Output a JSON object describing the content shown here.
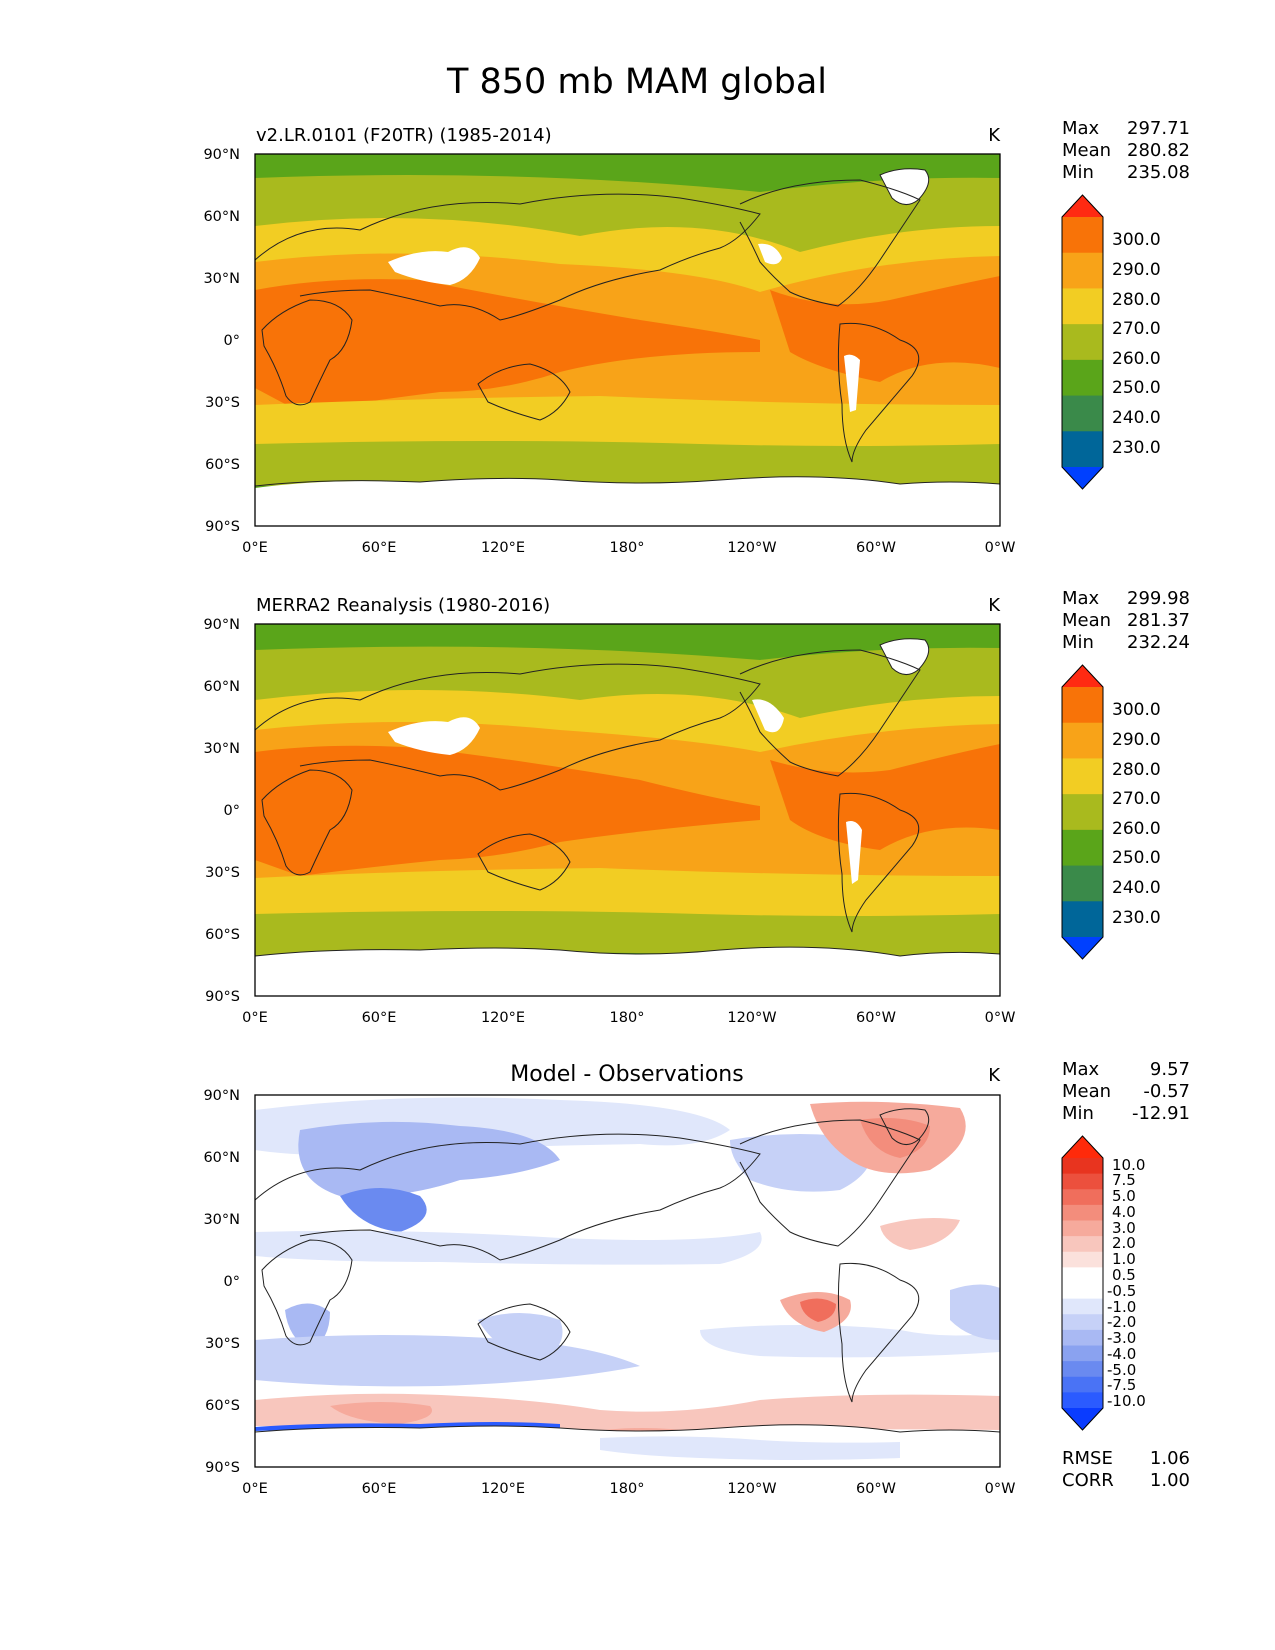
{
  "figure_title": "T 850 mb MAM global",
  "colors": {
    "abs_levels": [
      "#0040ff",
      "#006699",
      "#3a8a4a",
      "#5aa51a",
      "#a9ba1e",
      "#f2cd23",
      "#f8a318",
      "#f87308",
      "#ff2a12"
    ],
    "diff_levels": [
      "#0a3cff",
      "#2b5bff",
      "#4a73f5",
      "#6a8af0",
      "#8aa2f0",
      "#a9b9f3",
      "#c6d1f7",
      "#e0e7fb",
      "#ffffff",
      "#ffffff",
      "#fbe1dc",
      "#f8c6bd",
      "#f6aa9c",
      "#f38d7c",
      "#f06e5c",
      "#ec503d",
      "#e8341f",
      "#ff2a0a"
    ],
    "coast": "#222222",
    "missing": "#ffffff"
  },
  "chart_data": [
    {
      "type": "heatmap",
      "id": "model",
      "title": "v2.LR.0101 (F20TR) (1985-2014)",
      "units": "K",
      "stats": [
        {
          "label": "Max",
          "value": "297.71"
        },
        {
          "label": "Mean",
          "value": "280.82"
        },
        {
          "label": "Min",
          "value": "235.08"
        }
      ],
      "colorbar_labels": [
        "300.0",
        "290.0",
        "280.0",
        "270.0",
        "260.0",
        "250.0",
        "240.0",
        "230.0"
      ],
      "x_ticks": [
        "0°E",
        "60°E",
        "120°E",
        "180°",
        "120°W",
        "60°W",
        "0°W"
      ],
      "y_ticks": [
        "90°N",
        "60°N",
        "30°N",
        "0°",
        "30°S",
        "60°S",
        "90°S"
      ],
      "x_range": [
        0,
        360
      ],
      "y_range": [
        -90,
        90
      ],
      "levels": [
        230,
        240,
        250,
        260,
        270,
        280,
        290,
        300
      ],
      "extend": "both"
    },
    {
      "type": "heatmap",
      "id": "obs",
      "title": "MERRA2 Reanalysis (1980-2016)",
      "units": "K",
      "stats": [
        {
          "label": "Max",
          "value": "299.98"
        },
        {
          "label": "Mean",
          "value": "281.37"
        },
        {
          "label": "Min",
          "value": "232.24"
        }
      ],
      "colorbar_labels": [
        "300.0",
        "290.0",
        "280.0",
        "270.0",
        "260.0",
        "250.0",
        "240.0",
        "230.0"
      ],
      "x_ticks": [
        "0°E",
        "60°E",
        "120°E",
        "180°",
        "120°W",
        "60°W",
        "0°W"
      ],
      "y_ticks": [
        "90°N",
        "60°N",
        "30°N",
        "0°",
        "30°S",
        "60°S",
        "90°S"
      ],
      "x_range": [
        0,
        360
      ],
      "y_range": [
        -90,
        90
      ],
      "levels": [
        230,
        240,
        250,
        260,
        270,
        280,
        290,
        300
      ],
      "extend": "both"
    },
    {
      "type": "heatmap",
      "id": "diff",
      "title": "Model - Observations",
      "units": "K",
      "stats": [
        {
          "label": "Max",
          "value": "9.57"
        },
        {
          "label": "Mean",
          "value": "-0.57"
        },
        {
          "label": "Min",
          "value": "-12.91"
        }
      ],
      "colorbar_labels": [
        "10.0",
        "7.5",
        "5.0",
        "4.0",
        "3.0",
        "2.0",
        "1.0",
        "0.5",
        "-0.5",
        "-1.0",
        "-2.0",
        "-3.0",
        "-4.0",
        "-5.0",
        "-7.5",
        "-10.0"
      ],
      "x_ticks": [
        "0°E",
        "60°E",
        "120°E",
        "180°",
        "120°W",
        "60°W",
        "0°W"
      ],
      "y_ticks": [
        "90°N",
        "60°N",
        "30°N",
        "0°",
        "30°S",
        "60°S",
        "90°S"
      ],
      "x_range": [
        0,
        360
      ],
      "y_range": [
        -90,
        90
      ],
      "levels": [
        -10,
        -7.5,
        -5,
        -4,
        -3,
        -2,
        -1,
        -0.5,
        0.5,
        1,
        2,
        3,
        4,
        5,
        7.5,
        10
      ],
      "extend": "both",
      "metrics": [
        {
          "label": "RMSE",
          "value": "1.06"
        },
        {
          "label": "CORR",
          "value": "1.00"
        }
      ]
    }
  ]
}
